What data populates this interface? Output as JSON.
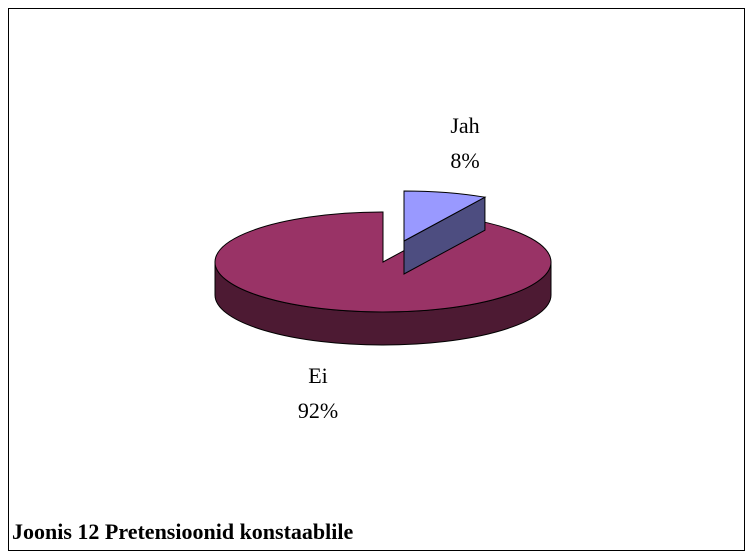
{
  "chart_data": {
    "type": "pie",
    "title": "Joonis 12 Pretensioonid konstaablile",
    "categories": [
      "Jah",
      "Ei"
    ],
    "values": [
      8,
      92
    ],
    "value_labels": [
      "8%",
      "92%"
    ],
    "colors": [
      "#9999ff",
      "#993366"
    ]
  }
}
